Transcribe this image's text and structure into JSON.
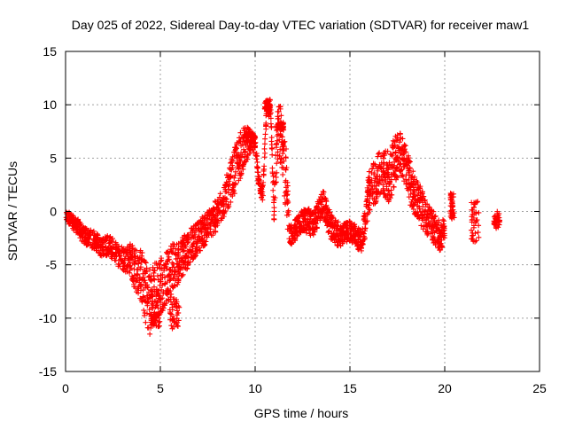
{
  "colors": {
    "series": "#ff0000",
    "grid": "#a0a0a0",
    "axis": "#000000",
    "background": "#ffffff"
  },
  "chart_data": {
    "type": "scatter",
    "title": "Day 025 of 2022, Sidereal Day-to-day VTEC variation (SDTVAR) for receiver maw1",
    "xlabel": "GPS time / hours",
    "ylabel": "SDTVAR / TECUs",
    "xlim": [
      0,
      25
    ],
    "ylim": [
      -15,
      15
    ],
    "xticks": [
      0,
      5,
      10,
      15,
      20,
      25
    ],
    "yticks": [
      -15,
      -10,
      -5,
      0,
      5,
      10,
      15
    ],
    "grid": true,
    "marker": "+",
    "series": [
      {
        "name": "maw1",
        "trace": [
          [
            0.0,
            -0.5
          ],
          [
            0.3,
            -0.8
          ],
          [
            0.5,
            -1.2
          ],
          [
            0.7,
            -1.5
          ],
          [
            0.9,
            -2.2
          ],
          [
            1.1,
            -2.4
          ],
          [
            1.3,
            -2.5
          ],
          [
            1.6,
            -2.8
          ],
          [
            1.8,
            -3.2
          ],
          [
            2.0,
            -3.4
          ],
          [
            2.3,
            -3.0
          ],
          [
            2.5,
            -3.6
          ],
          [
            2.8,
            -4.2
          ],
          [
            3.1,
            -4.5
          ],
          [
            3.4,
            -4.3
          ],
          [
            3.6,
            -5.1
          ],
          [
            3.8,
            -5.5
          ],
          [
            4.0,
            -6.0
          ],
          [
            4.2,
            -7.5
          ],
          [
            4.4,
            -8.4
          ],
          [
            4.6,
            -8.0
          ],
          [
            4.8,
            -7.5
          ],
          [
            5.0,
            -7.0
          ],
          [
            5.2,
            -6.5
          ],
          [
            5.4,
            -6.0
          ],
          [
            5.6,
            -5.5
          ],
          [
            5.8,
            -5.0
          ],
          [
            6.0,
            -4.5
          ],
          [
            6.2,
            -4.0
          ],
          [
            6.4,
            -3.6
          ],
          [
            6.6,
            -3.2
          ],
          [
            6.8,
            -2.8
          ],
          [
            7.0,
            -2.4
          ],
          [
            7.2,
            -2.0
          ],
          [
            7.4,
            -1.6
          ],
          [
            7.6,
            -1.2
          ],
          [
            7.8,
            -0.8
          ],
          [
            8.0,
            -0.2
          ],
          [
            8.2,
            0.4
          ],
          [
            8.4,
            1.2
          ],
          [
            8.6,
            2.2
          ],
          [
            8.8,
            3.2
          ],
          [
            9.0,
            4.2
          ],
          [
            9.2,
            5.2
          ],
          [
            9.4,
            6.0
          ],
          [
            9.6,
            6.4
          ],
          [
            9.8,
            6.5
          ],
          [
            10.0,
            6.4
          ],
          [
            10.2,
            2.8
          ],
          [
            10.4,
            1.5
          ],
          [
            10.6,
            9.4
          ],
          [
            10.8,
            9.8
          ],
          [
            11.0,
            0.5
          ],
          [
            11.2,
            7.5
          ],
          [
            11.4,
            7.0
          ],
          [
            11.6,
            4.0
          ],
          [
            11.8,
            -2.2
          ],
          [
            12.0,
            -2.0
          ],
          [
            12.2,
            -1.5
          ],
          [
            12.4,
            -1.0
          ],
          [
            12.6,
            -1.0
          ],
          [
            12.8,
            -0.8
          ],
          [
            13.0,
            -1.2
          ],
          [
            13.2,
            -0.8
          ],
          [
            13.4,
            0.2
          ],
          [
            13.6,
            0.8
          ],
          [
            13.8,
            -0.5
          ],
          [
            14.0,
            -1.5
          ],
          [
            14.2,
            -1.8
          ],
          [
            14.4,
            -2.2
          ],
          [
            14.6,
            -2.2
          ],
          [
            14.8,
            -2.0
          ],
          [
            15.0,
            -1.8
          ],
          [
            15.2,
            -2.0
          ],
          [
            15.4,
            -2.5
          ],
          [
            15.6,
            -2.8
          ],
          [
            15.8,
            -1.0
          ],
          [
            16.0,
            1.8
          ],
          [
            16.2,
            2.5
          ],
          [
            16.4,
            3.0
          ],
          [
            16.6,
            3.4
          ],
          [
            16.8,
            3.6
          ],
          [
            17.0,
            3.2
          ],
          [
            17.2,
            4.0
          ],
          [
            17.4,
            5.0
          ],
          [
            17.6,
            5.5
          ],
          [
            17.8,
            5.0
          ],
          [
            18.0,
            4.0
          ],
          [
            18.2,
            2.5
          ],
          [
            18.4,
            1.8
          ],
          [
            18.6,
            1.0
          ],
          [
            18.8,
            0.2
          ],
          [
            19.0,
            -0.5
          ],
          [
            19.2,
            -1.0
          ],
          [
            19.4,
            -1.5
          ],
          [
            19.6,
            -2.0
          ],
          [
            19.8,
            -2.5
          ],
          [
            20.0,
            -1.5
          ]
        ],
        "spread": [
          0.6,
          0.6,
          0.7,
          0.7,
          0.8,
          0.8,
          0.8,
          0.9,
          0.9,
          0.9,
          1.0,
          1.0,
          1.0,
          1.2,
          1.5,
          2.0,
          2.2,
          2.5,
          3.0,
          3.2,
          3.2,
          3.0,
          2.8,
          2.5,
          2.5,
          2.4,
          2.2,
          2.0,
          2.0,
          1.8,
          1.6,
          1.5,
          1.5,
          1.5,
          1.5,
          1.5,
          1.5,
          1.5,
          1.5,
          1.6,
          1.8,
          2.0,
          2.2,
          2.2,
          2.0,
          1.5,
          1.0,
          0.8,
          0.8,
          0.8,
          0.8,
          0.8,
          1.5,
          2.5,
          3.0,
          3.5,
          1.0,
          1.0,
          1.0,
          1.0,
          1.2,
          1.2,
          1.2,
          1.2,
          1.2,
          1.2,
          1.2,
          1.2,
          1.2,
          1.2,
          1.0,
          1.0,
          1.0,
          1.0,
          1.0,
          1.0,
          1.5,
          2.0,
          2.0,
          2.2,
          2.2,
          2.2,
          2.5,
          2.5,
          2.5,
          2.0,
          2.0,
          2.0,
          2.0,
          2.0,
          1.8,
          1.8,
          1.5,
          1.5,
          1.5,
          1.5,
          1.2,
          1.2
        ],
        "extra_clusters": [
          {
            "x": [
              5.5,
              6.0
            ],
            "y": -9.5,
            "spread": 1.5
          },
          {
            "x": [
              4.5,
              5.0
            ],
            "y": -10.2,
            "spread": 0.6
          },
          {
            "x": [
              9.4,
              10.0
            ],
            "y": 6.8,
            "spread": 0.4
          },
          {
            "x": [
              10.5,
              10.8
            ],
            "y": 10.0,
            "spread": 0.4
          },
          {
            "x": [
              11.1,
              11.5
            ],
            "y": 8.0,
            "spread": 0.4
          },
          {
            "x": [
              20.3,
              20.5
            ],
            "y": 0.5,
            "spread": 1.2
          },
          {
            "x": [
              21.4,
              21.8
            ],
            "y": -1.0,
            "spread": 2.0
          },
          {
            "x": [
              22.6,
              22.9
            ],
            "y": -0.8,
            "spread": 0.8
          }
        ],
        "range_summary": {
          "ymin": -10.7,
          "ymax": 10.3,
          "xmin": 0.0,
          "xmax": 22.9
        }
      }
    ]
  }
}
